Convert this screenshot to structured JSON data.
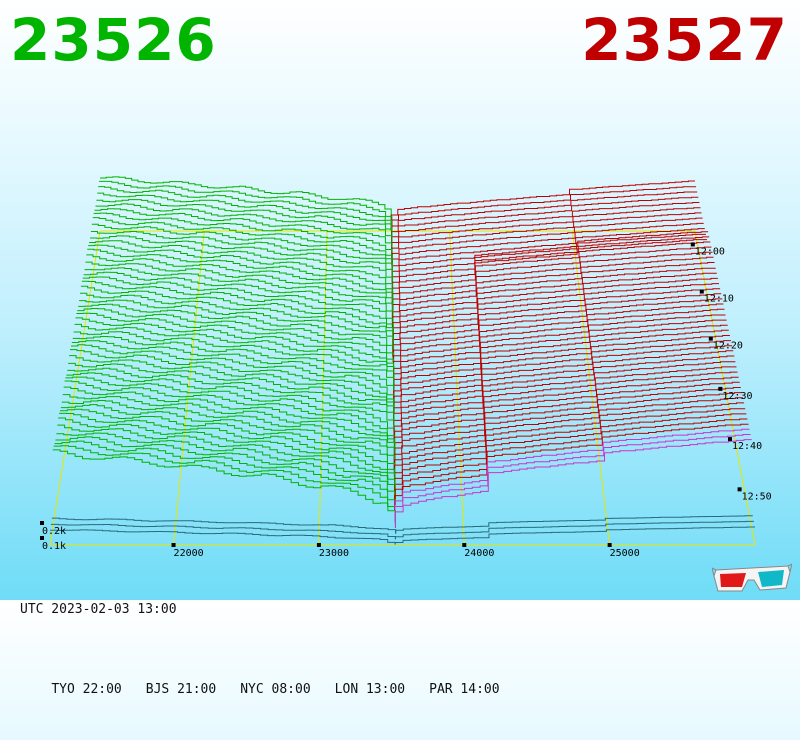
{
  "prices": {
    "bid": "23526",
    "ask": "23527",
    "bid_color": "#00b400",
    "ask_color": "#c00000"
  },
  "footer": {
    "utc": "UTC 2023-02-03 13:00",
    "times": [
      {
        "label": "TYO 22:00"
      },
      {
        "label": "BJS 21:00"
      },
      {
        "label": "NYC 08:00"
      },
      {
        "label": "LON 13:00"
      },
      {
        "label": "PAR 14:00"
      }
    ]
  },
  "icons": {
    "glasses": "3d-glasses-icon"
  },
  "chart_data": {
    "type": "area",
    "description_of_encoding": "",
    "price_axis": {
      "ticks": [
        22000,
        23000,
        24000,
        25000
      ],
      "tick_labels": [
        "22000",
        "23000",
        "24000",
        "25000"
      ],
      "range": [
        21150,
        26000
      ]
    },
    "volume_axis": {
      "ticks": [
        0.1,
        0.2
      ],
      "tick_labels": [
        "0.1k",
        "0.2k"
      ],
      "unit": "k"
    },
    "time_axis": {
      "tick_labels": [
        "12:00",
        "12:10",
        "12:20",
        "12:30",
        "12:40",
        "12:50"
      ],
      "range": [
        "11:56",
        "13:00"
      ]
    },
    "mid_price": 23526.5,
    "bid_color": "#00b400",
    "ask_color": "#c00000",
    "grid_color": "#e6e600",
    "snapshots": 56
  }
}
